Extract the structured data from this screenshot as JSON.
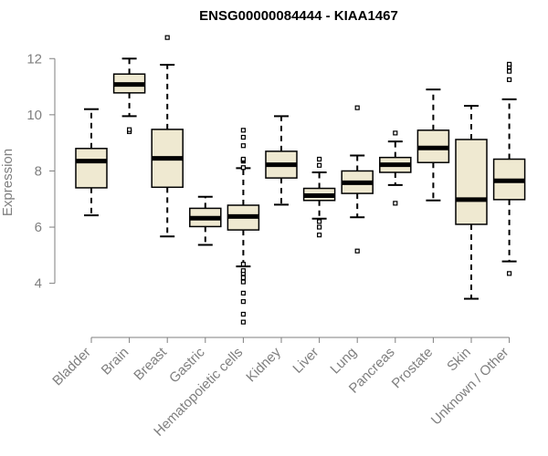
{
  "chart_data": {
    "type": "boxplot",
    "title": "ENSG00000084444 - KIAA1467",
    "ylabel": "Expression",
    "xlabel": "",
    "ylim": [
      2.3,
      12.95
    ],
    "yticks": [
      4,
      6,
      8,
      10,
      12
    ],
    "grid": false,
    "colors": {
      "box_fill": "#efe9d1",
      "box_stroke": "#000000",
      "axis": "#7f7f7f"
    },
    "categories": [
      "Bladder",
      "Brain",
      "Breast",
      "Gastric",
      "Hematopoietic cells",
      "Kidney",
      "Liver",
      "Lung",
      "Pancreas",
      "Prostate",
      "Skin",
      "Unknown / Other"
    ],
    "boxes": [
      {
        "category": "Bladder",
        "whisker_low": 6.42,
        "q1": 7.4,
        "median": 8.35,
        "q3": 8.8,
        "whisker_high": 10.2,
        "outliers": []
      },
      {
        "category": "Brain",
        "whisker_low": 9.95,
        "q1": 10.78,
        "median": 11.08,
        "q3": 11.45,
        "whisker_high": 12.0,
        "outliers": [
          9.4,
          9.47
        ]
      },
      {
        "category": "Breast",
        "whisker_low": 5.67,
        "q1": 7.42,
        "median": 8.45,
        "q3": 9.48,
        "whisker_high": 11.78,
        "outliers": [
          12.75
        ]
      },
      {
        "category": "Gastric",
        "whisker_low": 5.37,
        "q1": 6.02,
        "median": 6.32,
        "q3": 6.67,
        "whisker_high": 7.08,
        "outliers": []
      },
      {
        "category": "Hematopoietic cells",
        "whisker_low": 4.6,
        "q1": 5.9,
        "median": 6.38,
        "q3": 6.78,
        "whisker_high": 8.1,
        "outliers": [
          2.62,
          2.9,
          3.35,
          3.65,
          4.05,
          4.2,
          4.35,
          4.45,
          4.68,
          8.12,
          8.35,
          8.38,
          8.42,
          8.9,
          9.2,
          9.45
        ]
      },
      {
        "category": "Kidney",
        "whisker_low": 6.8,
        "q1": 7.75,
        "median": 8.22,
        "q3": 8.7,
        "whisker_high": 9.95,
        "outliers": []
      },
      {
        "category": "Liver",
        "whisker_low": 6.3,
        "q1": 6.95,
        "median": 7.12,
        "q3": 7.38,
        "whisker_high": 7.95,
        "outliers": [
          5.72,
          6.0,
          6.2,
          8.2,
          8.42
        ]
      },
      {
        "category": "Lung",
        "whisker_low": 6.35,
        "q1": 7.2,
        "median": 7.58,
        "q3": 8.0,
        "whisker_high": 8.55,
        "outliers": [
          5.15,
          10.25
        ]
      },
      {
        "category": "Pancreas",
        "whisker_low": 7.5,
        "q1": 7.95,
        "median": 8.22,
        "q3": 8.48,
        "whisker_high": 9.05,
        "outliers": [
          6.85,
          9.35
        ]
      },
      {
        "category": "Prostate",
        "whisker_low": 6.95,
        "q1": 8.3,
        "median": 8.82,
        "q3": 9.45,
        "whisker_high": 10.9,
        "outliers": []
      },
      {
        "category": "Skin",
        "whisker_low": 3.45,
        "q1": 6.1,
        "median": 6.98,
        "q3": 9.12,
        "whisker_high": 10.32,
        "outliers": []
      },
      {
        "category": "Unknown / Other",
        "whisker_low": 4.78,
        "q1": 6.98,
        "median": 7.65,
        "q3": 8.42,
        "whisker_high": 10.55,
        "outliers": [
          4.35,
          11.25,
          11.55,
          11.7,
          11.8
        ]
      }
    ]
  }
}
